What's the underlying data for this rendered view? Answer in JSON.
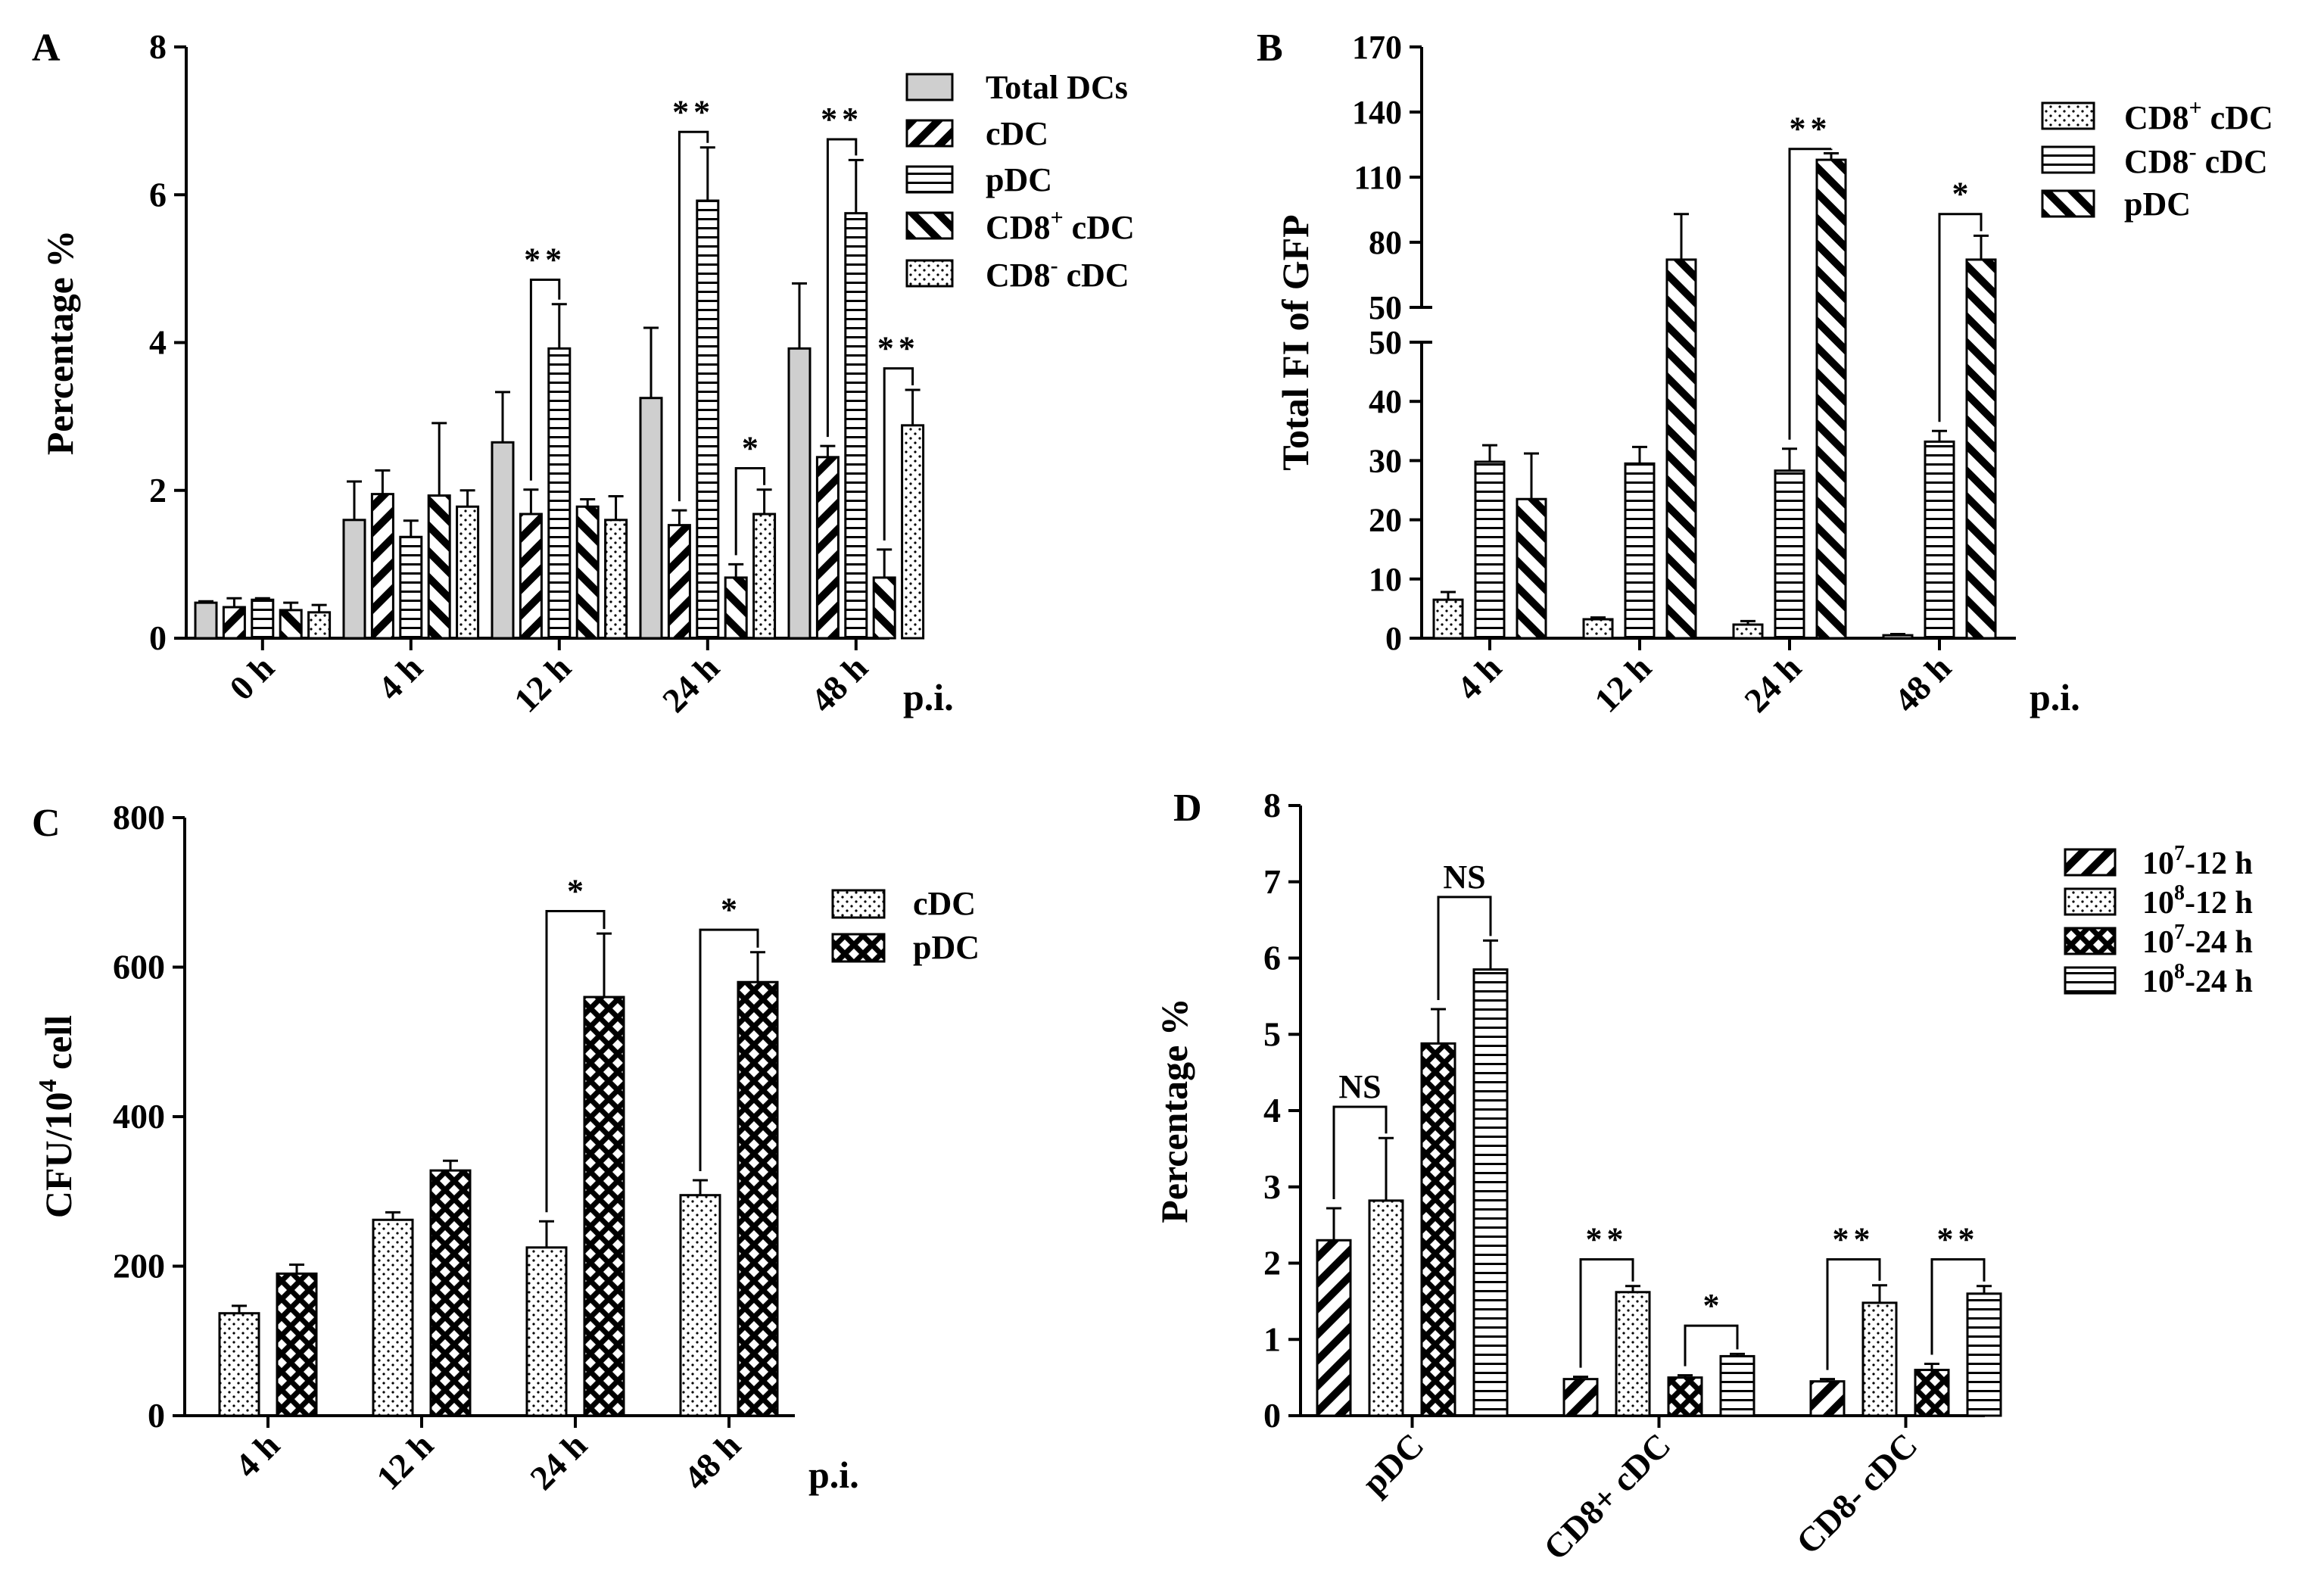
{
  "chart_data": [
    {
      "panel": "A",
      "type": "bar",
      "categories": [
        "0 h",
        "4 h",
        "12 h",
        "24 h",
        "48 h"
      ],
      "xlabel_suffix": "p.i.",
      "ylabel": "Percentage %",
      "ylim": [
        0,
        8
      ],
      "yticks": [
        "0",
        "2",
        "4",
        "6",
        "8"
      ],
      "series": [
        {
          "name": "Total DCs",
          "pattern": "gray",
          "values": [
            0.48,
            1.6,
            2.65,
            3.25,
            3.92
          ],
          "errors": [
            0.02,
            0.52,
            0.68,
            0.95,
            0.88
          ]
        },
        {
          "name": "cDC",
          "pattern": "diag-thick",
          "values": [
            0.42,
            1.95,
            1.68,
            1.53,
            2.45
          ],
          "errors": [
            0.12,
            0.32,
            0.33,
            0.2,
            0.15
          ]
        },
        {
          "name": "pDC",
          "pattern": "horiz",
          "values": [
            0.52,
            1.37,
            3.92,
            5.92,
            5.75
          ],
          "errors": [
            0.02,
            0.22,
            0.6,
            0.72,
            0.72
          ]
        },
        {
          "name": "CD8+ cDC",
          "pattern": "back-diag",
          "values": [
            0.38,
            1.93,
            1.78,
            0.82,
            0.82
          ],
          "errors": [
            0.1,
            0.98,
            0.1,
            0.18,
            0.38
          ]
        },
        {
          "name": "CD8- cDC",
          "pattern": "dots",
          "values": [
            0.35,
            1.78,
            1.6,
            1.68,
            2.88
          ],
          "errors": [
            0.1,
            0.22,
            0.32,
            0.33,
            0.48
          ]
        }
      ],
      "annotations": [
        {
          "text": "**",
          "group": 2,
          "from": 1,
          "to": 2,
          "y": 4.85
        },
        {
          "text": "**",
          "group": 3,
          "from": 1,
          "to": 2,
          "y": 6.85
        },
        {
          "text": "*",
          "group": 3,
          "from": 3,
          "to": 4,
          "y": 2.3
        },
        {
          "text": "**",
          "group": 4,
          "from": 1,
          "to": 2,
          "y": 6.75
        },
        {
          "text": "**",
          "group": 4,
          "from": 3,
          "to": 4,
          "y": 3.65
        }
      ]
    },
    {
      "panel": "B",
      "type": "bar",
      "categories": [
        "4 h",
        "12 h",
        "24 h",
        "48 h"
      ],
      "xlabel_suffix": "p.i.",
      "ylabel": "Total FI of GFP",
      "ylim": [
        0,
        170
      ],
      "axis_break": [
        50,
        50
      ],
      "yticks_lower": [
        "0",
        "10",
        "20",
        "30",
        "40",
        "50"
      ],
      "yticks_upper": [
        "50",
        "80",
        "110",
        "140",
        "170"
      ],
      "series": [
        {
          "name": "CD8+ cDC",
          "pattern": "dots",
          "values": [
            6.5,
            3.2,
            2.3,
            0.5
          ],
          "errors": [
            1.3,
            0.3,
            0.6,
            0.2
          ]
        },
        {
          "name": "CD8- cDC",
          "pattern": "horiz",
          "values": [
            29.8,
            29.5,
            28.3,
            33.2
          ],
          "errors": [
            2.8,
            2.8,
            3.7,
            1.8
          ]
        },
        {
          "name": "pDC",
          "pattern": "back-diag",
          "values": [
            23.5,
            72,
            118,
            72
          ],
          "errors": [
            7.7,
            21,
            3,
            11
          ]
        }
      ],
      "annotations": [
        {
          "text": "**",
          "group": 2,
          "from": 1,
          "to": 2,
          "y": 123
        },
        {
          "text": "*",
          "group": 3,
          "from": 1,
          "to": 2,
          "y": 93
        }
      ]
    },
    {
      "panel": "C",
      "type": "bar",
      "categories": [
        "4 h",
        "12 h",
        "24 h",
        "48 h"
      ],
      "xlabel_suffix": "p.i.",
      "ylabel": "CFU/10",
      "ylabel_sup": "4",
      "ylabel_tail": " cell",
      "ylim": [
        0,
        800
      ],
      "yticks": [
        "0",
        "200",
        "400",
        "600",
        "800"
      ],
      "series": [
        {
          "name": "cDC",
          "pattern": "dots",
          "values": [
            137,
            262,
            225,
            295
          ],
          "errors": [
            10,
            10,
            35,
            20
          ]
        },
        {
          "name": "pDC",
          "pattern": "cross",
          "values": [
            190,
            328,
            560,
            580
          ],
          "errors": [
            12,
            13,
            85,
            40
          ]
        }
      ],
      "annotations": [
        {
          "text": "*",
          "group": 2,
          "from": 0,
          "to": 1,
          "y": 675
        },
        {
          "text": "*",
          "group": 3,
          "from": 0,
          "to": 1,
          "y": 650
        }
      ]
    },
    {
      "panel": "D",
      "type": "bar",
      "categories": [
        "pDC",
        "CD8+ cDC",
        "CD8- cDC"
      ],
      "ylabel": "Percentage %",
      "ylim": [
        0,
        8
      ],
      "yticks": [
        "0",
        "1",
        "2",
        "3",
        "4",
        "5",
        "6",
        "7",
        "8"
      ],
      "series": [
        {
          "name": "10^7-12 h",
          "pattern": "diag-thick",
          "values": [
            2.3,
            0.48,
            0.45
          ],
          "errors": [
            0.42,
            0.03,
            0.03
          ]
        },
        {
          "name": "10^8-12 h",
          "pattern": "dots",
          "values": [
            2.82,
            1.62,
            1.48
          ],
          "errors": [
            0.82,
            0.08,
            0.23
          ]
        },
        {
          "name": "10^7-24 h",
          "pattern": "cross",
          "values": [
            4.88,
            0.5,
            0.6
          ],
          "errors": [
            0.45,
            0.03,
            0.08
          ]
        },
        {
          "name": "10^8-24 h",
          "pattern": "horiz",
          "values": [
            5.85,
            0.78,
            1.6
          ],
          "errors": [
            0.38,
            0.03,
            0.1
          ]
        }
      ],
      "annotations": [
        {
          "text": "NS",
          "group": 0,
          "from": 0,
          "to": 1,
          "y": 4.05
        },
        {
          "text": "NS",
          "group": 0,
          "from": 2,
          "to": 3,
          "y": 6.8
        },
        {
          "text": "**",
          "group": 1,
          "from": 0,
          "to": 1,
          "y": 2.05
        },
        {
          "text": "*",
          "group": 1,
          "from": 2,
          "to": 3,
          "y": 1.18
        },
        {
          "text": "**",
          "group": 2,
          "from": 0,
          "to": 1,
          "y": 2.05
        },
        {
          "text": "**",
          "group": 2,
          "from": 2,
          "to": 3,
          "y": 2.05
        }
      ]
    }
  ],
  "panel_labels": [
    "A",
    "B",
    "C",
    "D"
  ],
  "legend_text": {
    "A": [
      "Total DCs",
      "cDC",
      "pDC",
      "CD8",
      "cDC",
      "CD8",
      "cDC"
    ],
    "B": [
      "CD8",
      "cDC",
      "CD8",
      "cDC",
      "pDC"
    ],
    "C": [
      "cDC",
      "pDC"
    ],
    "D": [
      "10",
      "-12 h",
      "10",
      "-12 h",
      "10",
      "-24 h",
      "10",
      "-24 h"
    ]
  }
}
